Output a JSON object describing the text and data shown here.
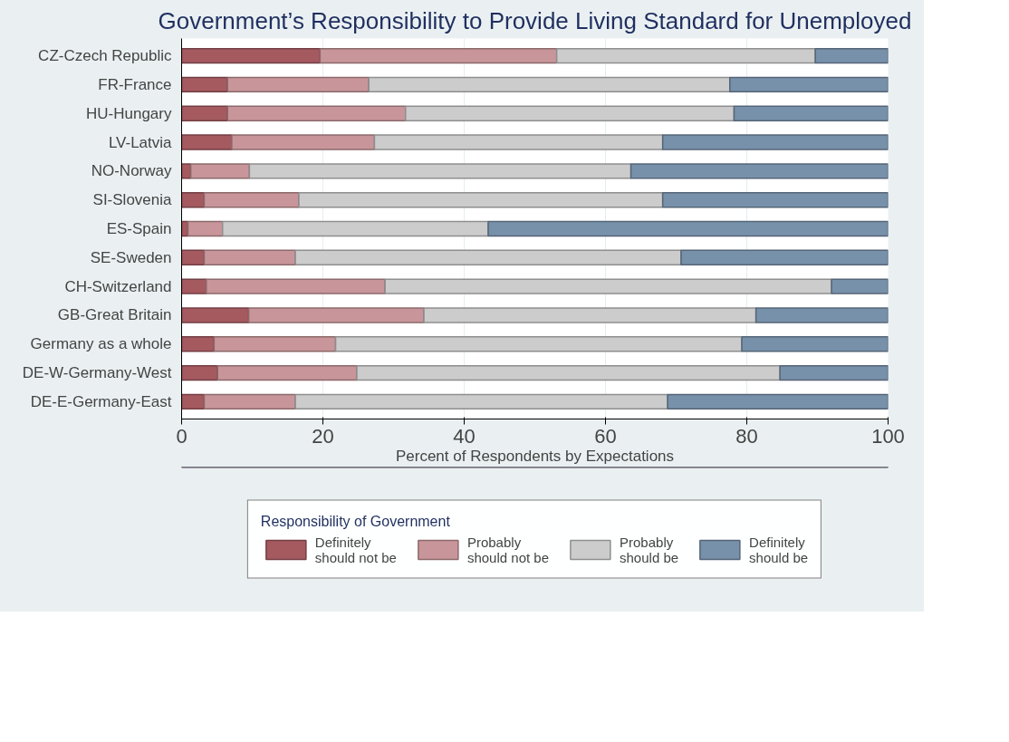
{
  "chart_data": {
    "type": "bar",
    "orientation": "horizontal",
    "stacked": true,
    "title": "Government’s Responsibility to Provide Living Standard for Unemployed",
    "xlabel": "Percent of Respondents by Expectations",
    "legend_title": "Responsibility of Government",
    "categories": [
      "CZ-Czech Republic",
      "FR-France",
      "HU-Hungary",
      "LV-Latvia",
      "NO-Norway",
      "SI-Slovenia",
      "ES-Spain",
      "SE-Sweden",
      "CH-Switzerland",
      "GB-Great Britain",
      "Germany as a whole",
      "DE-W-Germany-West",
      "DE-E-Germany-East"
    ],
    "series": [
      {
        "name": "Definitely\nshould not be",
        "color": "#a55a60",
        "values": [
          19.6,
          6.5,
          6.5,
          7.1,
          1.3,
          3.2,
          0.9,
          3.2,
          3.5,
          9.5,
          4.6,
          5.1,
          3.2
        ]
      },
      {
        "name": "Probably\nshould not be",
        "color": "#c8969a",
        "values": [
          33.5,
          20.0,
          25.2,
          20.2,
          8.3,
          13.4,
          4.9,
          12.9,
          25.3,
          24.8,
          17.2,
          19.7,
          12.9
        ]
      },
      {
        "name": "Probably\nshould be",
        "color": "#cccccc",
        "values": [
          36.6,
          51.1,
          46.5,
          40.8,
          54.0,
          51.5,
          37.6,
          54.6,
          63.2,
          47.0,
          57.5,
          59.9,
          52.7
        ]
      },
      {
        "name": "Definitely\nshould be",
        "color": "#7891ab",
        "values": [
          10.3,
          22.4,
          21.8,
          31.9,
          36.4,
          31.9,
          56.6,
          29.3,
          8.0,
          18.7,
          20.7,
          15.3,
          31.2
        ]
      }
    ],
    "xlim": [
      0,
      100
    ],
    "xticks": [
      0,
      20,
      40,
      60,
      80,
      100
    ],
    "grid": "x",
    "legend": "bottom"
  }
}
